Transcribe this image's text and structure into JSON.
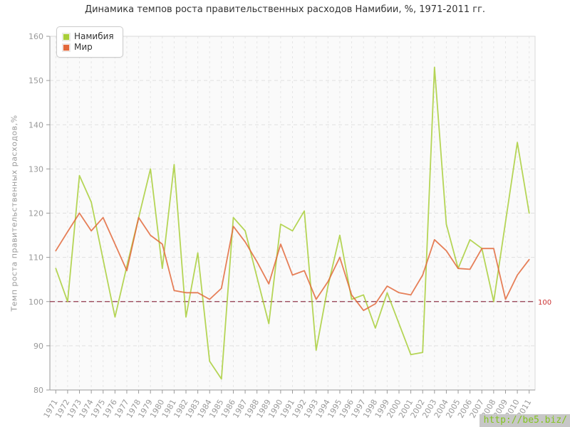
{
  "title": "Динамика темпов роста правительственных расходов Намибии, %, 1971-2011 гг.",
  "watermark": "http://be5.biz/",
  "legend": [
    {
      "label": "Намибия",
      "color": "#a8ce38"
    },
    {
      "label": "Мир",
      "color": "#e2683b"
    }
  ],
  "reference_line": {
    "value": 100,
    "label": "100",
    "line_color": "#933b4e",
    "label_color": "#cc3333"
  },
  "chart_data": {
    "type": "line",
    "title": "Динамика темпов роста правительственных расходов Намибии, %, 1971-2011 гг.",
    "xlabel": "",
    "ylabel": "Темп роста правительственных расходов,%",
    "ylim": [
      80,
      160
    ],
    "yticks": [
      80,
      90,
      100,
      110,
      120,
      130,
      140,
      150,
      160
    ],
    "grid": true,
    "legend_position": "top-left",
    "categories": [
      "1971",
      "1972",
      "1973",
      "1974",
      "1975",
      "1976",
      "1977",
      "1978",
      "1979",
      "1980",
      "1981",
      "1982",
      "1983",
      "1984",
      "1985",
      "1986",
      "1987",
      "1988",
      "1989",
      "1990",
      "1991",
      "1992",
      "1993",
      "1994",
      "1995",
      "1996",
      "1997",
      "1998",
      "1999",
      "2000",
      "2001",
      "2002",
      "2003",
      "2004",
      "2005",
      "2006",
      "2007",
      "2008",
      "2009",
      "2010",
      "2011"
    ],
    "series": [
      {
        "name": "Намибия",
        "color": "#a8ce38",
        "values": [
          107.5,
          100,
          128.5,
          122.5,
          109.5,
          96.5,
          108,
          119,
          130,
          107.5,
          131,
          96.5,
          111,
          86.5,
          82.5,
          119,
          116,
          105.5,
          95,
          117.5,
          116,
          120.5,
          89,
          103.5,
          115,
          100.5,
          101.5,
          94,
          102,
          95,
          88,
          88.5,
          153,
          117.5,
          107.5,
          114,
          112,
          100,
          118,
          136,
          120
        ]
      },
      {
        "name": "Мир",
        "color": "#e2683b",
        "values": [
          111.5,
          115.8,
          120,
          116,
          119,
          113,
          107,
          119,
          115,
          113,
          102.5,
          102,
          102,
          100.5,
          103,
          117,
          113.5,
          109,
          104,
          113,
          106,
          107,
          100.5,
          104.5,
          110,
          101.5,
          98,
          99.5,
          103.5,
          102,
          101.5,
          106,
          114,
          111.5,
          107.5,
          107.3,
          112,
          112,
          100.5,
          106,
          109.5
        ]
      }
    ]
  }
}
